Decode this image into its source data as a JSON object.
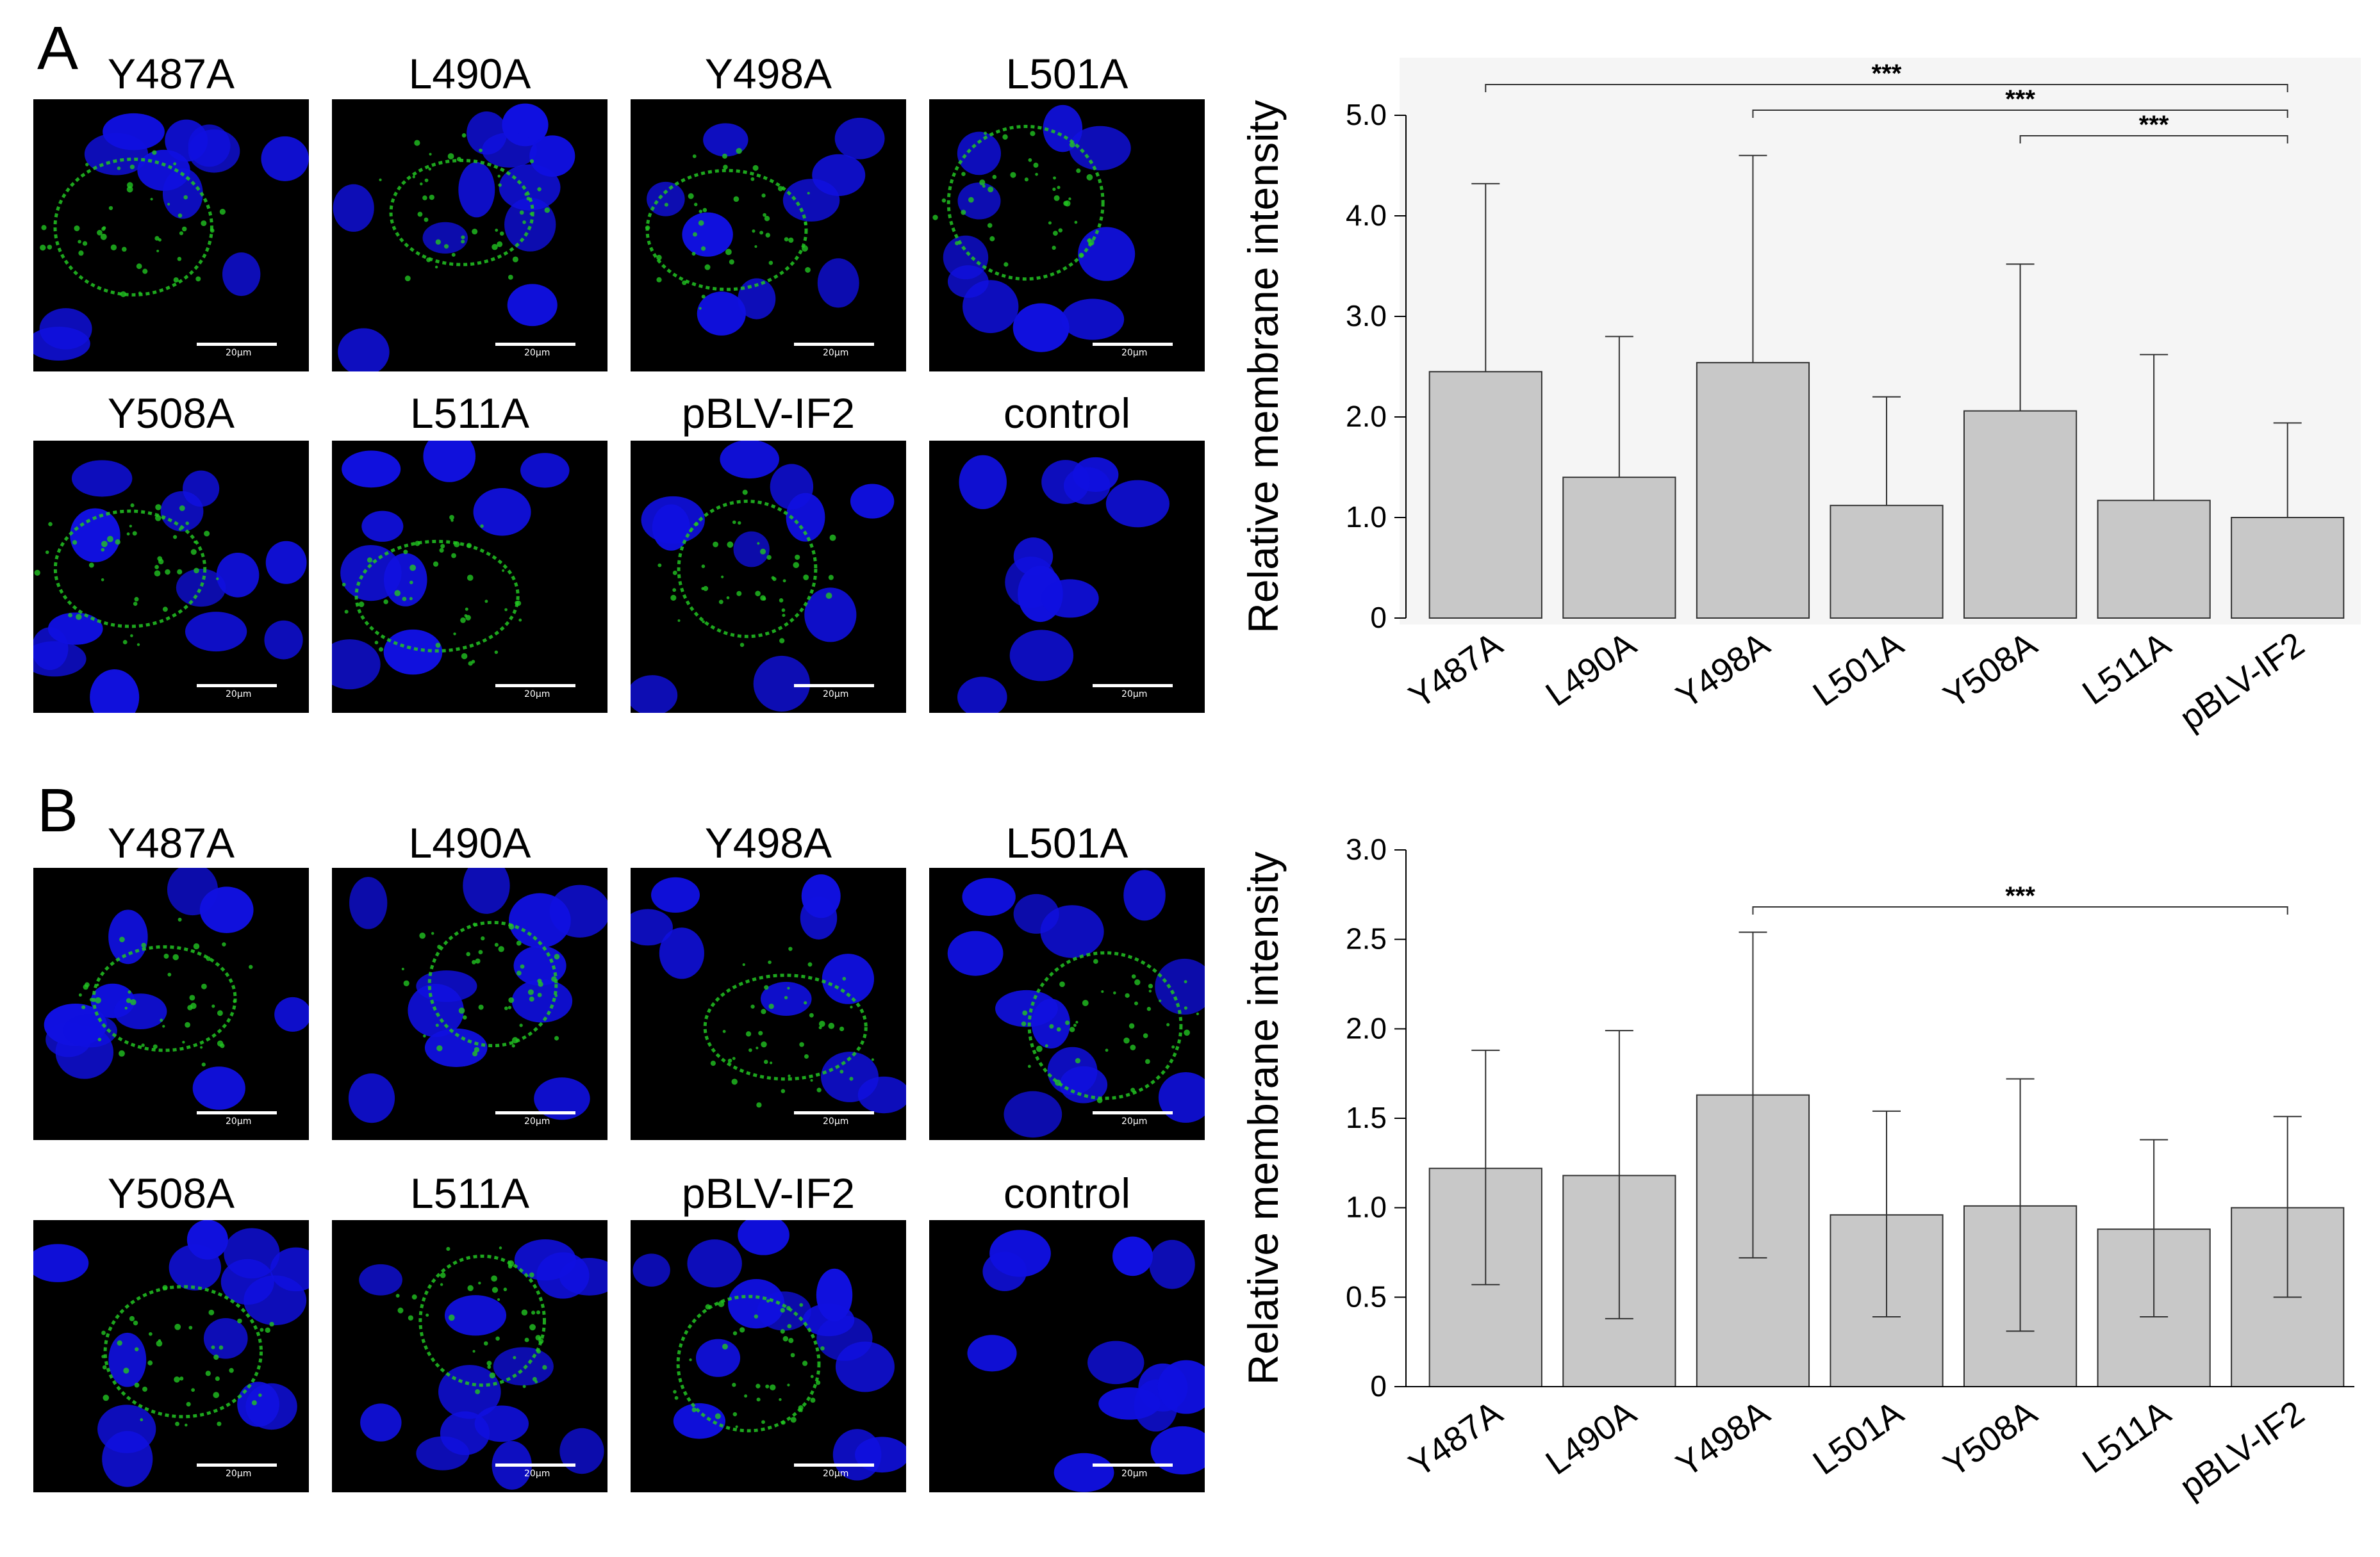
{
  "panels": [
    {
      "letter": "A",
      "images": [
        {
          "label": "Y487A",
          "scale_bar": "20μm"
        },
        {
          "label": "L490A",
          "scale_bar": "20μm"
        },
        {
          "label": "Y498A",
          "scale_bar": "20μm"
        },
        {
          "label": "L501A",
          "scale_bar": "20μm"
        },
        {
          "label": "Y508A",
          "scale_bar": "20μm"
        },
        {
          "label": "L511A",
          "scale_bar": "20μm"
        },
        {
          "label": "pBLV-IF2",
          "scale_bar": "20μm"
        },
        {
          "label": "control",
          "scale_bar": "20μm"
        }
      ]
    },
    {
      "letter": "B",
      "images": [
        {
          "label": "Y487A",
          "scale_bar": "20μm"
        },
        {
          "label": "L490A",
          "scale_bar": "20μm"
        },
        {
          "label": "Y498A",
          "scale_bar": "20μm"
        },
        {
          "label": "L501A",
          "scale_bar": "20μm"
        },
        {
          "label": "Y508A",
          "scale_bar": "20μm"
        },
        {
          "label": "L511A",
          "scale_bar": "20μm"
        },
        {
          "label": "pBLV-IF2",
          "scale_bar": "20μm"
        },
        {
          "label": "control",
          "scale_bar": "20μm"
        }
      ]
    }
  ],
  "chart_data": [
    {
      "type": "bar",
      "panel": "A",
      "ylabel": "Relative membrane intensity",
      "ylim": [
        0,
        5.0
      ],
      "yticks": [
        0,
        1.0,
        2.0,
        3.0,
        4.0,
        5.0
      ],
      "ytick_labels": [
        "0",
        "1.0",
        "2.0",
        "3.0",
        "4.0",
        "5.0"
      ],
      "categories": [
        "Y487A",
        "L490A",
        "Y498A",
        "L501A",
        "Y508A",
        "L511A",
        "pBLV-IF2"
      ],
      "values": [
        2.45,
        1.4,
        2.54,
        1.12,
        2.06,
        1.17,
        1.0
      ],
      "error_high": [
        4.32,
        2.8,
        4.6,
        2.2,
        3.52,
        2.62,
        1.94
      ],
      "error_low": [],
      "background": "#f5f5f5",
      "bar_color": "#c8c8c8",
      "significance": [
        {
          "from": "Y487A",
          "to": "pBLV-IF2",
          "label": "***"
        },
        {
          "from": "Y498A",
          "to": "pBLV-IF2",
          "label": "***"
        },
        {
          "from": "Y508A",
          "to": "pBLV-IF2",
          "label": "***"
        }
      ]
    },
    {
      "type": "bar",
      "panel": "B",
      "ylabel": "Relative membrane intensity",
      "ylim": [
        0,
        3.0
      ],
      "yticks": [
        0,
        0.5,
        1.0,
        1.5,
        2.0,
        2.5,
        3.0
      ],
      "ytick_labels": [
        "0",
        "0.5",
        "1.0",
        "1.5",
        "2.0",
        "2.5",
        "3.0"
      ],
      "categories": [
        "Y487A",
        "L490A",
        "Y498A",
        "L501A",
        "Y508A",
        "L511A",
        "pBLV-IF2"
      ],
      "values": [
        1.22,
        1.18,
        1.63,
        0.96,
        1.01,
        0.88,
        1.0
      ],
      "error_high": [
        1.88,
        1.99,
        2.54,
        1.54,
        1.72,
        1.38,
        1.51
      ],
      "error_low": [
        0.57,
        0.38,
        0.72,
        0.39,
        0.31,
        0.39,
        0.5
      ],
      "background": "#ffffff",
      "bar_color": "#c8c8c8",
      "significance": [
        {
          "from": "Y498A",
          "to": "pBLV-IF2",
          "label": "***"
        }
      ]
    }
  ],
  "colors": {
    "nucleus": "#1010e0",
    "membrane_stain": "#22c422",
    "image_background": "#000000"
  }
}
